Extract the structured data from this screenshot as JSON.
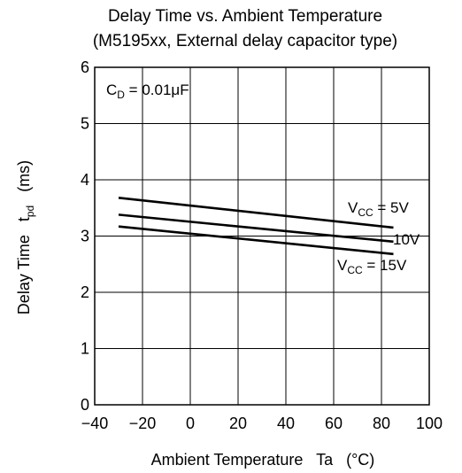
{
  "chart_data": {
    "type": "line",
    "title": "Delay Time vs. Ambient Temperature",
    "subtitle": "(M5195xx, External delay capacitor type)",
    "xlabel": "Ambient Temperature   Ta   (°C)",
    "ylabel": {
      "main": "Delay Time   t",
      "sub": "pd",
      "unit": "   (ms)"
    },
    "xlim": [
      -40,
      100
    ],
    "ylim": [
      0,
      6
    ],
    "x_ticks": [
      -40,
      -20,
      0,
      20,
      40,
      60,
      80,
      100
    ],
    "x_tick_labels": [
      "−40",
      "−20",
      "0",
      "20",
      "40",
      "60",
      "80",
      "100"
    ],
    "y_ticks": [
      0,
      1,
      2,
      3,
      4,
      5,
      6
    ],
    "y_tick_labels": [
      "0",
      "1",
      "2",
      "3",
      "4",
      "5",
      "6"
    ],
    "grid": true,
    "condition": {
      "main": "C",
      "sub": "D",
      "rest": " = 0.01μF"
    },
    "series": [
      {
        "name": "VCC = 5V",
        "label_main": "V",
        "label_sub": "CC",
        "label_rest": " = 5V",
        "x": [
          -30,
          85
        ],
        "y": [
          3.68,
          3.15
        ]
      },
      {
        "name": "10V",
        "label_main": "10V",
        "label_sub": "",
        "label_rest": "",
        "x": [
          -30,
          85
        ],
        "y": [
          3.38,
          2.9
        ]
      },
      {
        "name": "VCC = 15V",
        "label_main": "V",
        "label_sub": "CC",
        "label_rest": " = 15V",
        "x": [
          -30,
          85
        ],
        "y": [
          3.17,
          2.68
        ]
      }
    ]
  }
}
